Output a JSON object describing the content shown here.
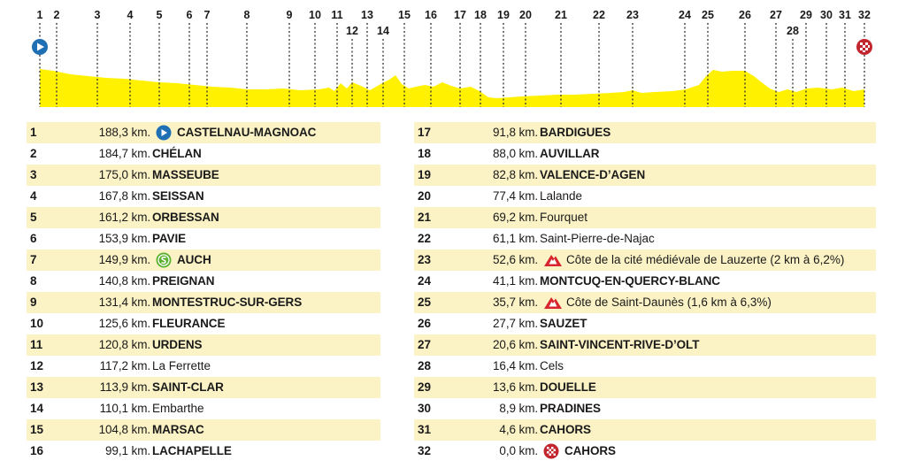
{
  "colors": {
    "profile_fill": "#fff100",
    "row_shade": "#fbf3c5",
    "start_icon": "#1f6fb5",
    "sprint_icon": "#5cb030",
    "climb_icon": "#d7262e",
    "finish_icon": "#c2262e"
  },
  "profile": {
    "marker_labels": [
      "1",
      "2",
      "3",
      "4",
      "5",
      "6",
      "7",
      "8",
      "9",
      "10",
      "11",
      "12",
      "13",
      "14",
      "15",
      "16",
      "17",
      "18",
      "19",
      "20",
      "21",
      "22",
      "23",
      "24",
      "25",
      "26",
      "27",
      "28",
      "29",
      "30",
      "31",
      "32"
    ]
  },
  "left_rows": [
    {
      "num": "1",
      "km": "188,3 km.",
      "icon": "start-icon",
      "name": "CASTELNAU-MAGNOAC",
      "upper": true
    },
    {
      "num": "2",
      "km": "184,7 km.",
      "icon": "",
      "name": "CHÉLAN",
      "upper": true
    },
    {
      "num": "3",
      "km": "175,0 km.",
      "icon": "",
      "name": "MASSEUBE",
      "upper": true
    },
    {
      "num": "4",
      "km": "167,8 km.",
      "icon": "",
      "name": "SEISSAN",
      "upper": true
    },
    {
      "num": "5",
      "km": "161,2 km.",
      "icon": "",
      "name": "ORBESSAN",
      "upper": true
    },
    {
      "num": "6",
      "km": "153,9 km.",
      "icon": "",
      "name": "PAVIE",
      "upper": true
    },
    {
      "num": "7",
      "km": "149,9 km.",
      "icon": "sprint-icon",
      "name": "AUCH",
      "upper": true
    },
    {
      "num": "8",
      "km": "140,8 km.",
      "icon": "",
      "name": "PREIGNAN",
      "upper": true
    },
    {
      "num": "9",
      "km": "131,4 km.",
      "icon": "",
      "name": "MONTESTRUC-SUR-GERS",
      "upper": true
    },
    {
      "num": "10",
      "km": "125,6 km.",
      "icon": "",
      "name": "FLEURANCE",
      "upper": true
    },
    {
      "num": "11",
      "km": "120,8 km.",
      "icon": "",
      "name": "URDENS",
      "upper": true
    },
    {
      "num": "12",
      "km": "117,2 km.",
      "icon": "",
      "name": "La Ferrette",
      "upper": false
    },
    {
      "num": "13",
      "km": "113,9 km.",
      "icon": "",
      "name": "SAINT-CLAR",
      "upper": true
    },
    {
      "num": "14",
      "km": "110,1 km.",
      "icon": "",
      "name": "Embarthe",
      "upper": false
    },
    {
      "num": "15",
      "km": "104,8 km.",
      "icon": "",
      "name": "MARSAC",
      "upper": true
    },
    {
      "num": "16",
      "km": "99,1 km.",
      "icon": "",
      "name": "LACHAPELLE",
      "upper": true
    }
  ],
  "right_rows": [
    {
      "num": "17",
      "km": "91,8 km.",
      "icon": "",
      "name": "BARDIGUES",
      "upper": true
    },
    {
      "num": "18",
      "km": "88,0 km.",
      "icon": "",
      "name": "AUVILLAR",
      "upper": true
    },
    {
      "num": "19",
      "km": "82,8 km.",
      "icon": "",
      "name": "VALENCE-D’AGEN",
      "upper": true
    },
    {
      "num": "20",
      "km": "77,4 km.",
      "icon": "",
      "name": "Lalande",
      "upper": false
    },
    {
      "num": "21",
      "km": "69,2 km.",
      "icon": "",
      "name": "Fourquet",
      "upper": false
    },
    {
      "num": "22",
      "km": "61,1 km.",
      "icon": "",
      "name": "Saint-Pierre-de-Najac",
      "upper": false
    },
    {
      "num": "23",
      "km": "52,6 km.",
      "icon": "climb-icon",
      "name": "Côte de la cité médiévale de Lauzerte (2 km à 6,2%)",
      "upper": false
    },
    {
      "num": "24",
      "km": "41,1 km.",
      "icon": "",
      "name": "MONTCUQ-EN-QUERCY-BLANC",
      "upper": true
    },
    {
      "num": "25",
      "km": "35,7 km.",
      "icon": "climb-icon",
      "name": "Côte de Saint-Daunès (1,6 km à 6,3%)",
      "upper": false
    },
    {
      "num": "26",
      "km": "27,7 km.",
      "icon": "",
      "name": "SAUZET",
      "upper": true
    },
    {
      "num": "27",
      "km": "20,6 km.",
      "icon": "",
      "name": "SAINT-VINCENT-RIVE-D’OLT",
      "upper": true
    },
    {
      "num": "28",
      "km": "16,4 km.",
      "icon": "",
      "name": "Cels",
      "upper": false
    },
    {
      "num": "29",
      "km": "13,6 km.",
      "icon": "",
      "name": "DOUELLE",
      "upper": true
    },
    {
      "num": "30",
      "km": "8,9 km.",
      "icon": "",
      "name": "PRADINES",
      "upper": true
    },
    {
      "num": "31",
      "km": "4,6 km.",
      "icon": "",
      "name": "CAHORS",
      "upper": true
    },
    {
      "num": "32",
      "km": "0,0 km.",
      "icon": "finish-icon",
      "name": "CAHORS",
      "upper": true
    }
  ]
}
